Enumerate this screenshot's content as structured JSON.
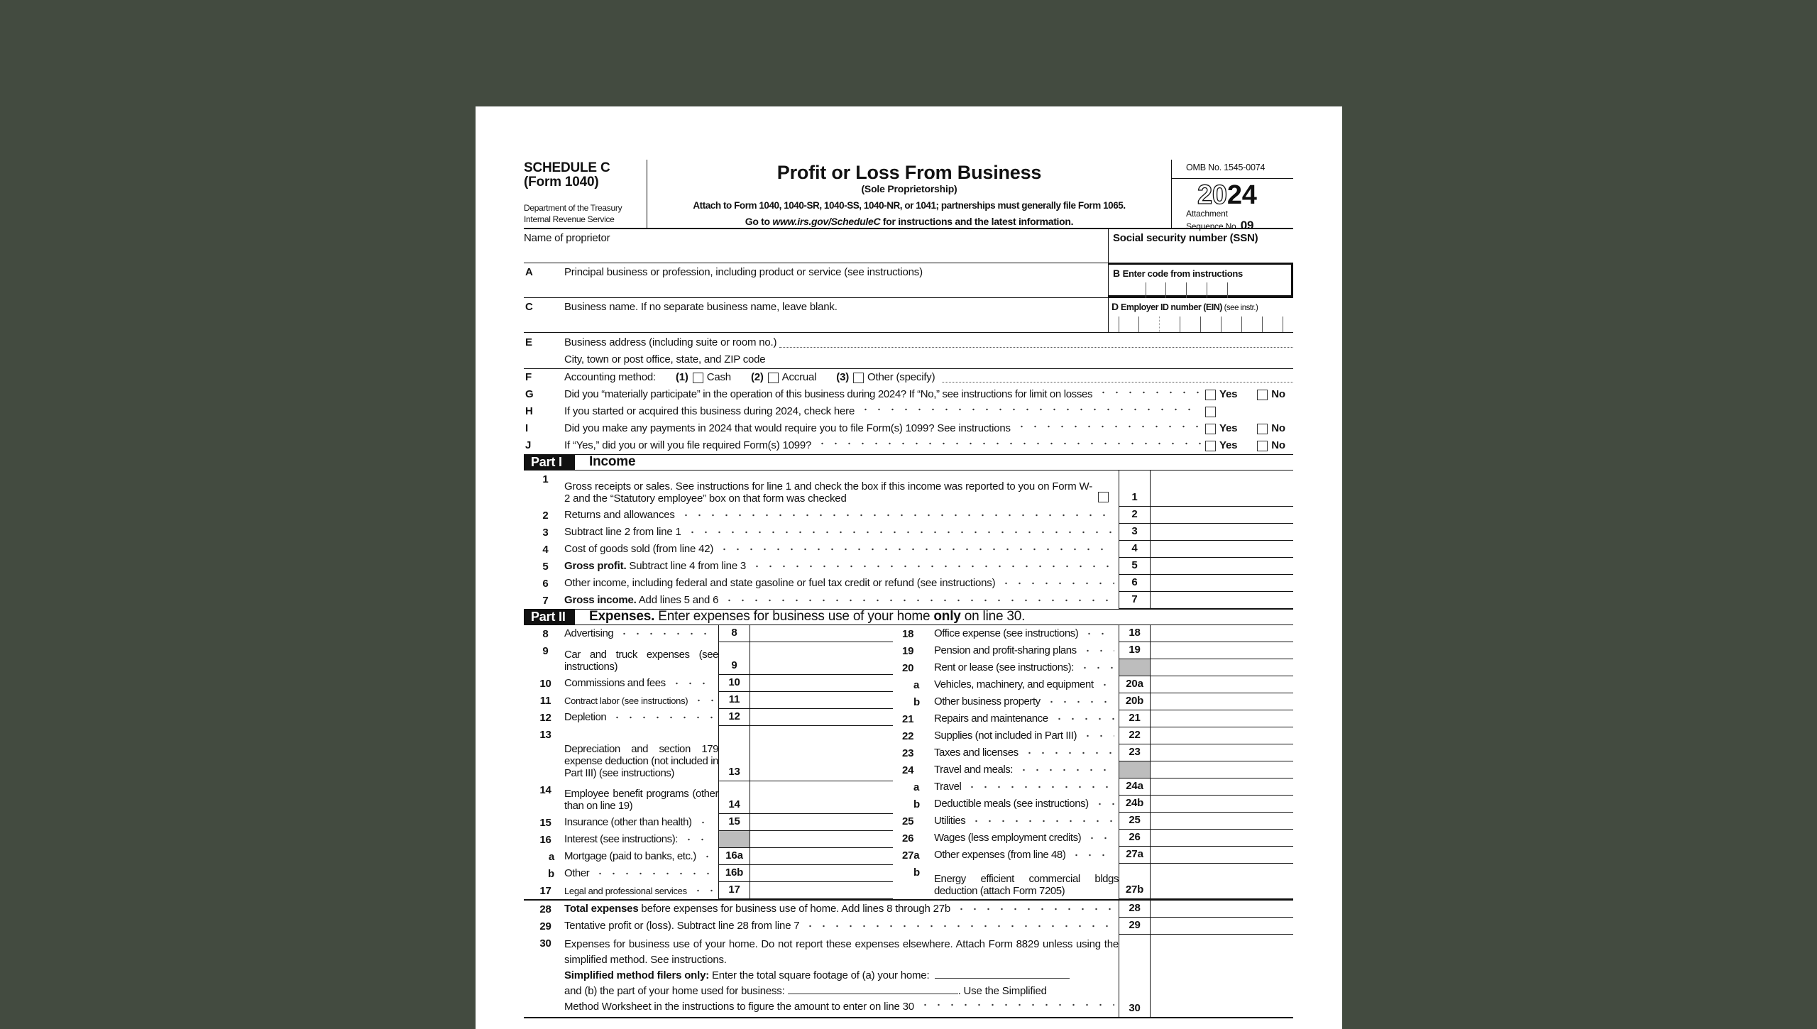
{
  "header": {
    "schedule": "SCHEDULE C",
    "form": "(Form 1040)",
    "dept": "Department of the Treasury",
    "irs": "Internal Revenue Service",
    "title": "Profit or Loss From Business",
    "subtitle": "(Sole Proprietorship)",
    "attach": "Attach to Form 1040, 1040-SR, 1040-SS, 1040-NR, or 1041; partnerships must generally file Form 1065.",
    "goto_prefix": "Go to ",
    "goto_url": "www.irs.gov/ScheduleC",
    "goto_suffix": " for instructions and the latest information.",
    "omb": "OMB No. 1545-0074",
    "year_outline": "20",
    "year_bold": "24",
    "attachment": "Attachment",
    "seq_label": "Sequence No. ",
    "seq": "09"
  },
  "identity": {
    "name_label": "Name of proprietor",
    "ssn_label": "Social security number (SSN)",
    "a_letter": "A",
    "a_label": "Principal business or profession, including product or service (see instructions)",
    "b_letter": "B",
    "b_label": "Enter code from instructions",
    "c_letter": "C",
    "c_label": "Business name. If no separate business name, leave blank.",
    "d_letter": "D",
    "d_label": "Employer ID number (EIN)",
    "d_suffix": " (see instr.)",
    "e_letter": "E",
    "e_label": "Business address (including suite or room no.)",
    "city_label": "City, town or post office, state, and ZIP code"
  },
  "questions": {
    "f": {
      "letter": "F",
      "label": "Accounting method:",
      "opt1_num": "(1)",
      "opt1": "Cash",
      "opt2_num": "(2)",
      "opt2": "Accrual",
      "opt3_num": "(3)",
      "opt3": "Other (specify)"
    },
    "g": {
      "letter": "G",
      "label": "Did you “materially participate” in the operation of this business during 2024? If “No,” see instructions for limit on losses"
    },
    "h": {
      "letter": "H",
      "label": "If you started or acquired this business during 2024, check here"
    },
    "i": {
      "letter": "I",
      "label": "Did you make any payments in 2024 that would require you to file Form(s) 1099? See instructions"
    },
    "j": {
      "letter": "J",
      "label": "If “Yes,” did you or will you file required Form(s) 1099?"
    },
    "yes": "Yes",
    "no": "No"
  },
  "part1": {
    "badge": "Part I",
    "title": "Income",
    "lines": [
      {
        "num": "1",
        "label": "Gross receipts or sales. See instructions for line 1 and check the box if this income was reported to you on Form W-2 and the “Statutory employee” box on that form was checked",
        "box": "1"
      },
      {
        "num": "2",
        "label": "Returns and allowances",
        "box": "2"
      },
      {
        "num": "3",
        "label": "Subtract line 2 from line 1",
        "box": "3"
      },
      {
        "num": "4",
        "label": "Cost of goods sold (from line 42)",
        "box": "4"
      },
      {
        "num": "5",
        "bold": "Gross profit.",
        "label": " Subtract line 4 from line 3",
        "box": "5"
      },
      {
        "num": "6",
        "label": "Other income, including federal and state gasoline or fuel tax credit or refund (see instructions)",
        "box": "6"
      },
      {
        "num": "7",
        "bold": "Gross income.",
        "label": " Add lines 5 and 6",
        "box": "7"
      }
    ]
  },
  "part2": {
    "badge": "Part II",
    "title_bold": "Expenses.",
    "title_rest": " Enter expenses for business use of your home ",
    "title_only": "only",
    "title_end": " on line 30.",
    "left": [
      {
        "num": "8",
        "label": "Advertising",
        "box": "8"
      },
      {
        "num": "9",
        "label": "Car and truck expenses (see instructions)",
        "box": "9"
      },
      {
        "num": "10",
        "label": "Commissions and fees",
        "box": "10"
      },
      {
        "num": "11",
        "label": "Contract labor (see instructions)",
        "box": "11"
      },
      {
        "num": "12",
        "label": "Depletion",
        "box": "12"
      },
      {
        "num": "13",
        "label": "Depreciation and section 179 expense deduction (not included in Part III) (see instructions)",
        "box": "13"
      },
      {
        "num": "14",
        "label": "Employee benefit programs (other than on line 19)",
        "box": "14"
      },
      {
        "num": "15",
        "label": "Insurance (other than health)",
        "box": "15"
      },
      {
        "num": "16",
        "label": "Interest (see instructions):",
        "box": "",
        "shaded": true
      },
      {
        "num": "a",
        "label": "Mortgage (paid to banks, etc.)",
        "box": "16a"
      },
      {
        "num": "b",
        "label": "Other",
        "box": "16b"
      },
      {
        "num": "17",
        "label": "Legal and professional services",
        "box": "17"
      }
    ],
    "right": [
      {
        "num": "18",
        "label": "Office expense (see instructions)",
        "box": "18"
      },
      {
        "num": "19",
        "label": "Pension and profit-sharing plans",
        "box": "19"
      },
      {
        "num": "20",
        "label": "Rent or lease (see instructions):",
        "box": "",
        "shaded": true
      },
      {
        "num": "a",
        "label": "Vehicles, machinery, and equipment",
        "box": "20a"
      },
      {
        "num": "b",
        "label": "Other business property",
        "box": "20b"
      },
      {
        "num": "21",
        "label": "Repairs and maintenance",
        "box": "21"
      },
      {
        "num": "22",
        "label": "Supplies (not included in Part III)",
        "box": "22"
      },
      {
        "num": "23",
        "label": "Taxes and licenses",
        "box": "23"
      },
      {
        "num": "24",
        "label": "Travel and meals:",
        "box": "",
        "shaded": true
      },
      {
        "num": "a",
        "label": "Travel",
        "box": "24a"
      },
      {
        "num": "b",
        "label": "Deductible meals (see instructions)",
        "box": "24b"
      },
      {
        "num": "25",
        "label": "Utilities",
        "box": "25"
      },
      {
        "num": "26",
        "label": "Wages (less employment credits)",
        "box": "26"
      },
      {
        "num": "27a",
        "label": "Other expenses (from line 48)",
        "box": "27a"
      },
      {
        "num": "b",
        "label": "Energy efficient commercial bldgs deduction (attach Form 7205)",
        "box": "27b"
      }
    ]
  },
  "totals": [
    {
      "num": "28",
      "bold": "Total expenses",
      "label": " before expenses for business use of home. Add lines 8 through 27b",
      "box": "28"
    },
    {
      "num": "29",
      "label": "Tentative profit or (loss). Subtract line 28 from line 7",
      "box": "29"
    }
  ],
  "line30": {
    "num": "30",
    "text": "Expenses for business use of your home. Do not report these expenses elsewhere. Attach Form 8829 unless using the simplified method. See instructions.",
    "simplified_bold": "Simplified method filers only:",
    "simplified_rest": " Enter the total square footage of (a) your home:",
    "part_b": "and (b) the part of your home used for business:",
    "use_simplified": ". Use the Simplified",
    "worksheet": "Method Worksheet in the instructions to figure the amount to enter on line 30",
    "box": "30"
  }
}
